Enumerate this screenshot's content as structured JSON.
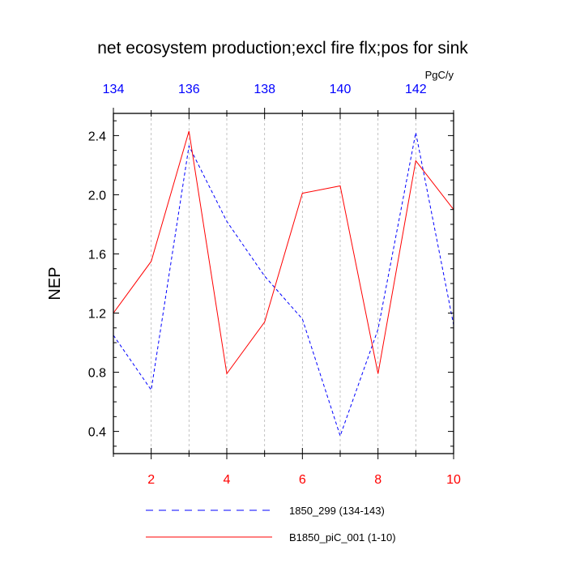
{
  "chart_data": {
    "type": "line",
    "title": "net ecosystem production;excl fire flx;pos for sink",
    "units": "PgC/y",
    "ylabel": "NEP",
    "xlabel": "",
    "ylim": [
      0.25,
      2.55
    ],
    "y_ticks": [
      0.4,
      0.8,
      1.2,
      1.6,
      2.0,
      2.4
    ],
    "y_tick_labels": [
      "0.4",
      "0.8",
      "1.2",
      "1.6",
      "2.0",
      "2.4"
    ],
    "x_bottom": {
      "range": [
        1,
        10
      ],
      "ticks": [
        2,
        4,
        6,
        8,
        10
      ],
      "labels": [
        "2",
        "4",
        "6",
        "8",
        "10"
      ],
      "color": "#ff0000"
    },
    "x_top": {
      "range": [
        134,
        143
      ],
      "ticks": [
        134,
        136,
        138,
        140,
        142
      ],
      "labels": [
        "134",
        "136",
        "138",
        "140",
        "142"
      ],
      "color": "#0000ff"
    },
    "grid": "vertical dashed at every bottom-axis integer",
    "legend_position": "bottom",
    "series": [
      {
        "name": "1850_299 (134-143)",
        "color": "#0000ff",
        "style": "dashed",
        "axis": "top",
        "x": [
          134,
          135,
          136,
          137,
          138,
          139,
          140,
          141,
          142,
          143
        ],
        "values": [
          1.05,
          0.68,
          2.33,
          1.82,
          1.45,
          1.16,
          0.37,
          1.09,
          2.42,
          1.12
        ]
      },
      {
        "name": "B1850_piC_001 (1-10)",
        "color": "#ff0000",
        "style": "solid",
        "axis": "bottom",
        "x": [
          1,
          2,
          3,
          4,
          5,
          6,
          7,
          8,
          9,
          10
        ],
        "values": [
          1.2,
          1.55,
          2.43,
          0.79,
          1.14,
          2.01,
          2.06,
          0.79,
          2.23,
          1.9
        ]
      }
    ]
  }
}
